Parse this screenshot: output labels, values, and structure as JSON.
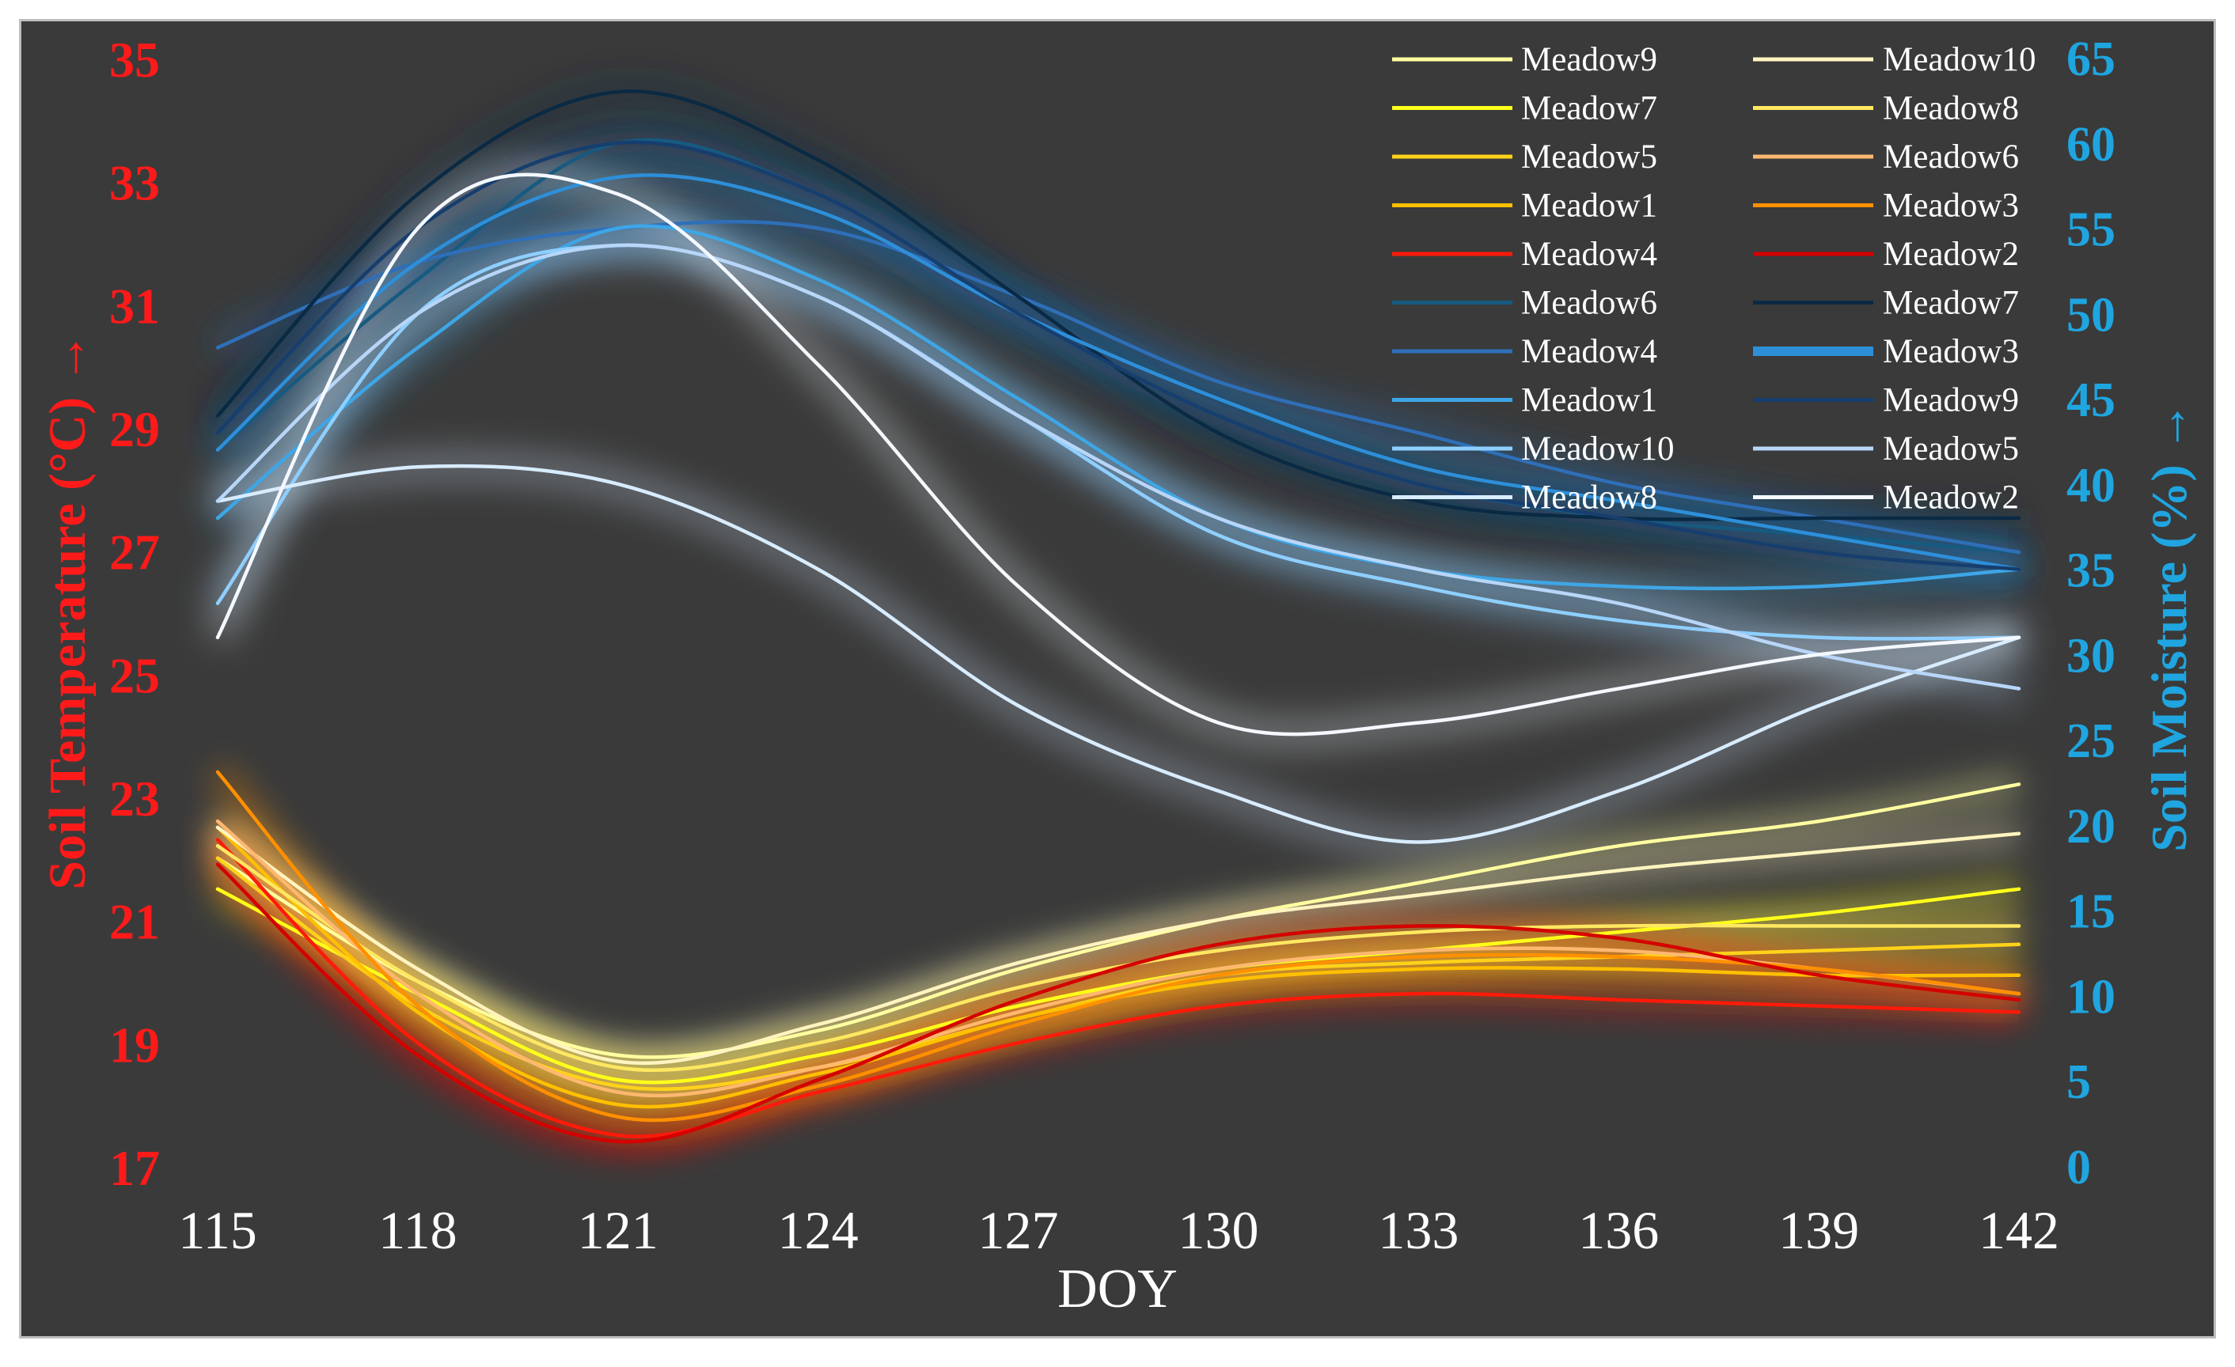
{
  "chart_data": {
    "type": "line",
    "xlabel": "DOY",
    "ylabel_left": "Soil Temperature (°C) →",
    "ylabel_right": "Soil Moisture (%) →",
    "x_ticks": [
      115,
      118,
      121,
      124,
      127,
      130,
      133,
      136,
      139,
      142
    ],
    "x_tick_labels": [
      "115",
      "118",
      "121",
      "124",
      "127",
      "130",
      "133",
      "136",
      "139",
      "142"
    ],
    "xlim": [
      115,
      142
    ],
    "ylim_left": [
      17,
      35
    ],
    "ylim_right": [
      0,
      65
    ],
    "left_ticks": [
      "17",
      "19",
      "21",
      "23",
      "25",
      "27",
      "29",
      "31",
      "33",
      "35"
    ],
    "right_ticks": [
      "0",
      "5",
      "10",
      "15",
      "20",
      "25",
      "30",
      "35",
      "40",
      "45",
      "50",
      "55",
      "60",
      "65"
    ],
    "colors": {
      "left_axis": "#ff1a1a",
      "right_axis": "#1fa5e0",
      "x_axis": "#ffffff",
      "background": "#3a3a3a"
    },
    "temperature_series": [
      {
        "name": "Meadow9",
        "color": "#ffffa0",
        "x": [
          115,
          118,
          121,
          124,
          127,
          130,
          133,
          136,
          139,
          142
        ],
        "values": [
          22.0,
          20.0,
          18.8,
          19.2,
          20.2,
          21.0,
          21.6,
          22.2,
          22.6,
          23.2
        ]
      },
      {
        "name": "Meadow7",
        "color": "#ffff1a",
        "x": [
          115,
          118,
          121,
          124,
          127,
          130,
          133,
          136,
          139,
          142
        ],
        "values": [
          21.5,
          19.8,
          18.4,
          18.8,
          19.6,
          20.2,
          20.5,
          20.8,
          21.1,
          21.5
        ]
      },
      {
        "name": "Meadow5",
        "color": "#ffd21a",
        "x": [
          115,
          118,
          121,
          124,
          127,
          130,
          133,
          136,
          139,
          142
        ],
        "values": [
          22.0,
          19.6,
          18.3,
          18.6,
          19.4,
          20.1,
          20.3,
          20.4,
          20.5,
          20.6
        ]
      },
      {
        "name": "Meadow1",
        "color": "#ffc000",
        "x": [
          115,
          118,
          121,
          124,
          127,
          130,
          133,
          136,
          139,
          142
        ],
        "values": [
          22.5,
          19.5,
          18.0,
          18.5,
          19.4,
          20.0,
          20.2,
          20.2,
          20.1,
          20.1
        ]
      },
      {
        "name": "Meadow4",
        "color": "#ff1a0a",
        "x": [
          115,
          118,
          121,
          124,
          127,
          130,
          133,
          136,
          139,
          142
        ],
        "values": [
          22.3,
          19.0,
          17.5,
          18.2,
          19.0,
          19.6,
          19.8,
          19.7,
          19.6,
          19.5
        ]
      },
      {
        "name": "Meadow10",
        "color": "#fff4c0",
        "x": [
          115,
          118,
          121,
          124,
          127,
          130,
          133,
          136,
          139,
          142
        ],
        "values": [
          22.5,
          20.2,
          18.7,
          19.3,
          20.3,
          21.0,
          21.4,
          21.8,
          22.1,
          22.4
        ]
      },
      {
        "name": "Meadow8",
        "color": "#ffe860",
        "x": [
          115,
          118,
          121,
          124,
          127,
          130,
          133,
          136,
          139,
          142
        ],
        "values": [
          22.2,
          20.0,
          18.6,
          19.0,
          19.9,
          20.5,
          20.8,
          20.9,
          20.9,
          20.9
        ]
      },
      {
        "name": "Meadow6",
        "color": "#ffb870",
        "x": [
          115,
          118,
          121,
          124,
          127,
          130,
          133,
          136,
          139,
          142
        ],
        "values": [
          22.6,
          19.8,
          18.2,
          18.6,
          19.5,
          20.2,
          20.5,
          20.5,
          20.2,
          19.8
        ]
      },
      {
        "name": "Meadow3",
        "color": "#ff9000",
        "x": [
          115,
          118,
          121,
          124,
          127,
          130,
          133,
          136,
          139,
          142
        ],
        "values": [
          23.4,
          19.6,
          17.8,
          18.3,
          19.3,
          20.1,
          20.4,
          20.4,
          20.2,
          19.8
        ]
      },
      {
        "name": "Meadow2",
        "color": "#d40000",
        "x": [
          115,
          118,
          121,
          124,
          127,
          130,
          133,
          136,
          139,
          142
        ],
        "values": [
          21.9,
          18.8,
          17.4,
          18.4,
          19.7,
          20.6,
          20.9,
          20.7,
          20.1,
          19.7
        ]
      }
    ],
    "moisture_series": [
      {
        "name": "Meadow6",
        "color": "#175a80",
        "x": [
          115,
          118,
          121,
          124,
          127,
          130,
          133,
          136,
          139,
          142
        ],
        "values": [
          42,
          52,
          60,
          57,
          50,
          44,
          40,
          38,
          37,
          36
        ]
      },
      {
        "name": "Meadow4",
        "color": "#2f6fb8",
        "x": [
          115,
          118,
          121,
          124,
          127,
          130,
          133,
          136,
          139,
          142
        ],
        "values": [
          48,
          53,
          55,
          55,
          51,
          46,
          43,
          40,
          38,
          36
        ]
      },
      {
        "name": "Meadow1",
        "color": "#3ea6e6",
        "x": [
          115,
          118,
          121,
          124,
          127,
          130,
          133,
          136,
          139,
          142
        ],
        "values": [
          38,
          48,
          55,
          52,
          45,
          38,
          35,
          34,
          34,
          35
        ]
      },
      {
        "name": "Meadow10",
        "color": "#8ecfff",
        "x": [
          115,
          118,
          121,
          124,
          127,
          130,
          133,
          136,
          139,
          142
        ],
        "values": [
          33,
          50,
          54,
          51,
          44,
          37,
          34,
          32,
          31,
          31
        ]
      },
      {
        "name": "Meadow8",
        "color": "#d8ecff",
        "x": [
          115,
          118,
          121,
          124,
          127,
          130,
          133,
          136,
          139,
          142
        ],
        "values": [
          39,
          41,
          40,
          35,
          27,
          22,
          19,
          22,
          27,
          31
        ]
      },
      {
        "name": "Meadow7",
        "color": "#0a2a44",
        "x": [
          115,
          118,
          121,
          124,
          127,
          130,
          133,
          136,
          139,
          142
        ],
        "values": [
          44,
          57,
          63,
          59,
          51,
          43,
          39,
          38,
          38,
          38
        ]
      },
      {
        "name": "Meadow3",
        "color": "#2e8fd9",
        "x": [
          115,
          118,
          121,
          124,
          127,
          130,
          133,
          136,
          139,
          142
        ],
        "values": [
          42,
          53,
          58,
          56,
          50,
          45,
          41,
          39,
          37,
          35
        ]
      },
      {
        "name": "Meadow9",
        "color": "#163e6e",
        "x": [
          115,
          118,
          121,
          124,
          127,
          130,
          133,
          136,
          139,
          142
        ],
        "values": [
          43,
          55,
          60,
          57,
          50,
          44,
          40,
          38,
          36,
          35
        ]
      },
      {
        "name": "Meadow5",
        "color": "#b8d6f8",
        "x": [
          115,
          118,
          121,
          124,
          127,
          130,
          133,
          136,
          139,
          142
        ],
        "values": [
          39,
          50,
          54,
          51,
          44,
          38,
          35,
          33,
          30,
          28
        ]
      },
      {
        "name": "Meadow2",
        "color": "#f4f8ff",
        "x": [
          115,
          118,
          121,
          124,
          127,
          130,
          133,
          136,
          139,
          142
        ],
        "values": [
          31,
          55,
          57,
          47,
          34,
          26,
          26,
          28,
          30,
          31
        ]
      }
    ],
    "legend_col1": [
      {
        "label": "Meadow9",
        "color": "#ffffa0",
        "width": 5
      },
      {
        "label": "Meadow7",
        "color": "#ffff1a",
        "width": 5
      },
      {
        "label": "Meadow5",
        "color": "#ffd21a",
        "width": 5
      },
      {
        "label": "Meadow1",
        "color": "#ffc000",
        "width": 5
      },
      {
        "label": "Meadow4",
        "color": "#ff1a0a",
        "width": 5
      },
      {
        "label": "Meadow6",
        "color": "#175a80",
        "width": 5
      },
      {
        "label": "Meadow4",
        "color": "#2f6fb8",
        "width": 5
      },
      {
        "label": "Meadow1",
        "color": "#3ea6e6",
        "width": 5
      },
      {
        "label": "Meadow10",
        "color": "#8ecfff",
        "width": 5
      },
      {
        "label": "Meadow8",
        "color": "#d8ecff",
        "width": 5
      }
    ],
    "legend_col2": [
      {
        "label": "Meadow10",
        "color": "#fff4c0",
        "width": 5
      },
      {
        "label": "Meadow8",
        "color": "#ffe860",
        "width": 5
      },
      {
        "label": "Meadow6",
        "color": "#ffb870",
        "width": 5
      },
      {
        "label": "Meadow3",
        "color": "#ff9000",
        "width": 5
      },
      {
        "label": "Meadow2",
        "color": "#d40000",
        "width": 5
      },
      {
        "label": "Meadow7",
        "color": "#0a2a44",
        "width": 5
      },
      {
        "label": "Meadow3",
        "color": "#2e8fd9",
        "width": 12
      },
      {
        "label": "Meadow9",
        "color": "#163e6e",
        "width": 5
      },
      {
        "label": "Meadow5",
        "color": "#b8d6f8",
        "width": 5
      },
      {
        "label": "Meadow2",
        "color": "#f4f8ff",
        "width": 5
      }
    ]
  }
}
